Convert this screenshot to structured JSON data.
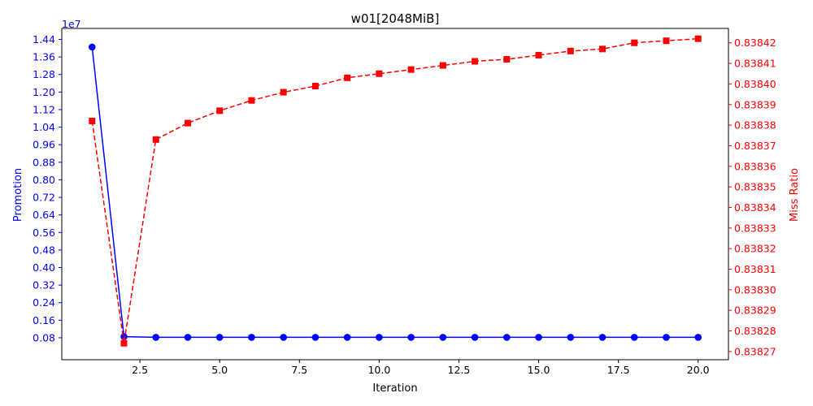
{
  "chart_data": {
    "type": "line",
    "title": "w01[2048MiB]",
    "xlabel": "Iteration",
    "x": [
      1,
      2,
      3,
      4,
      5,
      6,
      7,
      8,
      9,
      10,
      11,
      12,
      13,
      14,
      15,
      16,
      17,
      18,
      19,
      20
    ],
    "x_ticks": [
      "2.5",
      "5.0",
      "7.5",
      "10.0",
      "12.5",
      "15.0",
      "17.5",
      "20.0"
    ],
    "xlim": [
      0.05,
      20.95
    ],
    "grid": false,
    "left_axis": {
      "label": "Promotion",
      "color": "#0000ff",
      "offset_text": "1e7",
      "tick_labels": [
        "0.08",
        "0.16",
        "0.24",
        "0.32",
        "0.40",
        "0.48",
        "0.56",
        "0.64",
        "0.72",
        "0.80",
        "0.88",
        "0.96",
        "1.04",
        "1.12",
        "1.20",
        "1.28",
        "1.36",
        "1.44"
      ],
      "ylim": [
        -0.02,
        1.49
      ]
    },
    "right_axis": {
      "label": "Miss Ratio",
      "color": "#ff0000",
      "tick_labels": [
        "0.83827",
        "0.83828",
        "0.83829",
        "0.83830",
        "0.83831",
        "0.83832",
        "0.83833",
        "0.83834",
        "0.83835",
        "0.83836",
        "0.83837",
        "0.83838",
        "0.83839",
        "0.83840",
        "0.83841",
        "0.83842"
      ],
      "ylim": [
        0.838266,
        0.838427
      ]
    },
    "series": [
      {
        "axis": "left",
        "color": "#0000ff",
        "linestyle": "solid",
        "marker": "circle",
        "values": [
          1.405,
          0.085,
          0.082,
          0.082,
          0.082,
          0.082,
          0.082,
          0.082,
          0.082,
          0.082,
          0.082,
          0.082,
          0.082,
          0.082,
          0.082,
          0.082,
          0.082,
          0.082,
          0.082,
          0.082
        ]
      },
      {
        "axis": "right",
        "color": "#ff0000",
        "linestyle": "dashed",
        "marker": "square",
        "values": [
          0.838382,
          0.838274,
          0.838373,
          0.838381,
          0.838387,
          0.838392,
          0.838396,
          0.838399,
          0.838403,
          0.838405,
          0.838407,
          0.838409,
          0.838411,
          0.838412,
          0.838414,
          0.838416,
          0.838417,
          0.83842,
          0.838421,
          0.838422
        ]
      }
    ]
  }
}
